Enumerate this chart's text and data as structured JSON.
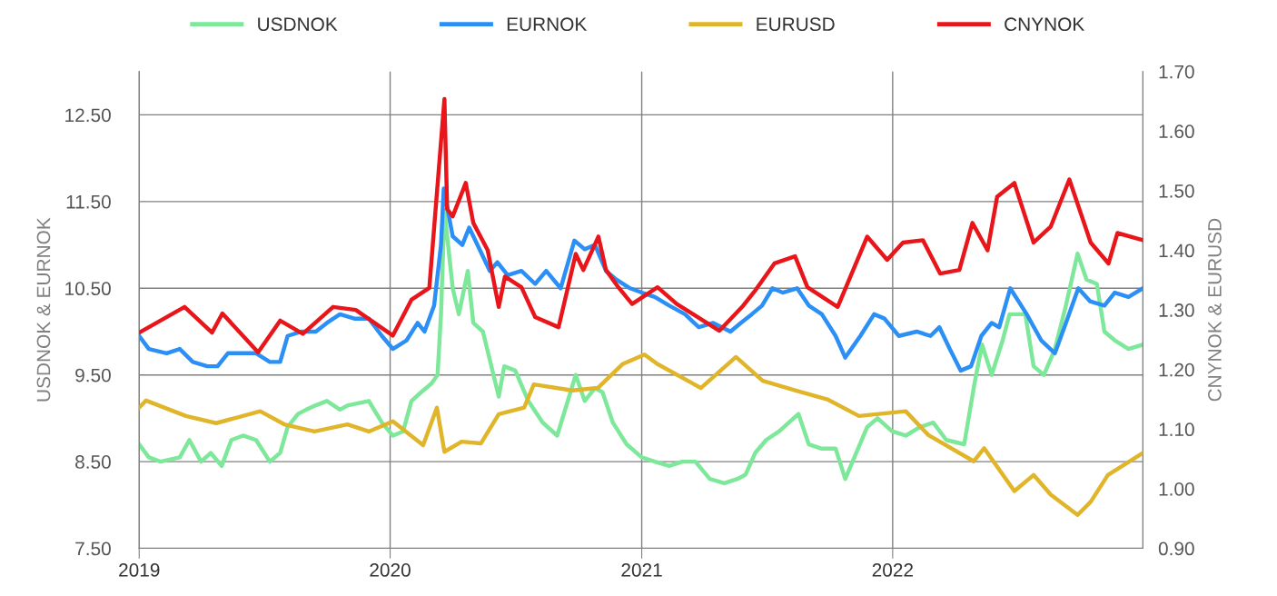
{
  "chart_data": {
    "type": "line",
    "ylabel": "USDNOK & EURNOK",
    "y2label": "CNYNOK & EURUSD",
    "xlim": [
      "2019-01-01",
      "2022-12-31"
    ],
    "xticks": [
      {
        "value": "2019-01-01",
        "label": "2019"
      },
      {
        "value": "2020-01-01",
        "label": "2020"
      },
      {
        "value": "2021-01-01",
        "label": "2021"
      },
      {
        "value": "2022-01-01",
        "label": "2022"
      }
    ],
    "ylim": [
      7.5,
      13.0
    ],
    "yticks": [
      {
        "value": 7.5,
        "label": "7.50"
      },
      {
        "value": 8.5,
        "label": "8.50"
      },
      {
        "value": 9.5,
        "label": "9.50"
      },
      {
        "value": 10.5,
        "label": "10.50"
      },
      {
        "value": 11.5,
        "label": "11.50"
      },
      {
        "value": 12.5,
        "label": "12.50"
      }
    ],
    "y2lim": [
      0.9,
      1.7
    ],
    "y2ticks": [
      {
        "value": 0.9,
        "label": "0.90"
      },
      {
        "value": 1.0,
        "label": "1.00"
      },
      {
        "value": 1.1,
        "label": "1.10"
      },
      {
        "value": 1.2,
        "label": "1.20"
      },
      {
        "value": 1.3,
        "label": "1.30"
      },
      {
        "value": 1.4,
        "label": "1.40"
      },
      {
        "value": 1.5,
        "label": "1.50"
      },
      {
        "value": 1.6,
        "label": "1.60"
      },
      {
        "value": 1.7,
        "label": "1.70"
      }
    ],
    "grid": true,
    "legend": "top",
    "marker": "none",
    "line_style": "solid",
    "series": [
      {
        "name": "USDNOK",
        "color": "#7de89a",
        "x": [
          "2019-01-01",
          "2019-01-15",
          "2019-02-01",
          "2019-03-01",
          "2019-03-15",
          "2019-04-01",
          "2019-04-15",
          "2019-05-01",
          "2019-05-15",
          "2019-06-01",
          "2019-06-20",
          "2019-07-10",
          "2019-07-25",
          "2019-08-05",
          "2019-08-20",
          "2019-09-01",
          "2019-09-15",
          "2019-10-01",
          "2019-10-20",
          "2019-11-01",
          "2019-12-01",
          "2019-12-20",
          "2020-01-05",
          "2020-01-20",
          "2020-02-01",
          "2020-02-15",
          "2020-03-01",
          "2020-03-10",
          "2020-03-15",
          "2020-03-20",
          "2020-04-01",
          "2020-04-10",
          "2020-04-23",
          "2020-05-01",
          "2020-05-15",
          "2020-06-07",
          "2020-06-15",
          "2020-07-01",
          "2020-07-20",
          "2020-08-10",
          "2020-08-31",
          "2020-09-27",
          "2020-10-10",
          "2020-10-25",
          "2020-11-05",
          "2020-11-20",
          "2020-12-10",
          "2021-01-01",
          "2021-01-20",
          "2021-02-10",
          "2021-03-01",
          "2021-03-20",
          "2021-04-10",
          "2021-05-01",
          "2021-05-20",
          "2021-06-01",
          "2021-06-15",
          "2021-07-01",
          "2021-07-20",
          "2021-08-17",
          "2021-09-01",
          "2021-09-20",
          "2021-10-10",
          "2021-10-24",
          "2021-11-25",
          "2021-12-10",
          "2021-12-31",
          "2022-01-20",
          "2022-02-10",
          "2022-03-01",
          "2022-03-20",
          "2022-04-15",
          "2022-04-30",
          "2022-05-11",
          "2022-05-25",
          "2022-06-10",
          "2022-06-20",
          "2022-07-13",
          "2022-07-25",
          "2022-08-09",
          "2022-08-25",
          "2022-09-10",
          "2022-09-27",
          "2022-10-10",
          "2022-10-25",
          "2022-11-05",
          "2022-11-20",
          "2022-12-10",
          "2022-12-31"
        ],
        "values": [
          8.7,
          8.55,
          8.5,
          8.55,
          8.75,
          8.5,
          8.6,
          8.45,
          8.75,
          8.8,
          8.75,
          8.5,
          8.6,
          8.9,
          9.05,
          9.1,
          9.15,
          9.2,
          9.1,
          9.15,
          9.2,
          8.95,
          8.8,
          8.85,
          9.2,
          9.3,
          9.4,
          9.5,
          10.2,
          11.4,
          10.5,
          10.2,
          10.7,
          10.1,
          10.0,
          9.25,
          9.6,
          9.55,
          9.2,
          8.95,
          8.8,
          9.5,
          9.2,
          9.35,
          9.3,
          8.95,
          8.7,
          8.55,
          8.5,
          8.45,
          8.5,
          8.5,
          8.3,
          8.25,
          8.3,
          8.35,
          8.6,
          8.75,
          8.85,
          9.05,
          8.7,
          8.65,
          8.65,
          8.3,
          8.9,
          9.0,
          8.85,
          8.8,
          8.9,
          8.95,
          8.75,
          8.7,
          9.4,
          9.85,
          9.5,
          9.9,
          10.2,
          10.2,
          9.6,
          9.5,
          9.8,
          10.3,
          10.9,
          10.6,
          10.55,
          10.0,
          9.9,
          9.8,
          9.85
        ]
      },
      {
        "name": "EURNOK",
        "color": "#2b8ff5",
        "x": [
          "2019-01-01",
          "2019-01-15",
          "2019-02-10",
          "2019-03-01",
          "2019-03-20",
          "2019-04-10",
          "2019-04-25",
          "2019-05-10",
          "2019-06-01",
          "2019-06-20",
          "2019-07-10",
          "2019-07-25",
          "2019-08-05",
          "2019-08-25",
          "2019-09-15",
          "2019-10-01",
          "2019-10-20",
          "2019-11-10",
          "2019-12-01",
          "2019-12-20",
          "2020-01-05",
          "2020-01-25",
          "2020-02-10",
          "2020-02-20",
          "2020-03-05",
          "2020-03-15",
          "2020-03-19",
          "2020-04-01",
          "2020-04-15",
          "2020-04-25",
          "2020-05-10",
          "2020-05-25",
          "2020-06-05",
          "2020-06-20",
          "2020-07-10",
          "2020-07-30",
          "2020-08-15",
          "2020-09-05",
          "2020-09-25",
          "2020-10-10",
          "2020-10-25",
          "2020-11-10",
          "2020-11-25",
          "2020-12-15",
          "2021-01-01",
          "2021-01-20",
          "2021-02-10",
          "2021-03-05",
          "2021-03-25",
          "2021-04-15",
          "2021-05-10",
          "2021-05-25",
          "2021-06-10",
          "2021-06-25",
          "2021-07-10",
          "2021-07-25",
          "2021-08-15",
          "2021-09-01",
          "2021-09-20",
          "2021-10-10",
          "2021-10-24",
          "2021-11-15",
          "2021-12-05",
          "2021-12-20",
          "2022-01-10",
          "2022-02-05",
          "2022-02-25",
          "2022-03-10",
          "2022-03-25",
          "2022-04-10",
          "2022-04-25",
          "2022-05-10",
          "2022-05-25",
          "2022-06-05",
          "2022-06-21",
          "2022-07-15",
          "2022-08-05",
          "2022-08-25",
          "2022-09-10",
          "2022-09-28",
          "2022-10-15",
          "2022-11-05",
          "2022-11-20",
          "2022-12-10",
          "2022-12-31"
        ],
        "values": [
          9.95,
          9.8,
          9.75,
          9.8,
          9.65,
          9.6,
          9.6,
          9.75,
          9.75,
          9.75,
          9.65,
          9.65,
          9.95,
          10.0,
          10.0,
          10.1,
          10.2,
          10.15,
          10.15,
          9.95,
          9.8,
          9.9,
          10.1,
          10.0,
          10.3,
          11.0,
          11.65,
          11.1,
          11.0,
          11.2,
          10.95,
          10.7,
          10.8,
          10.65,
          10.7,
          10.55,
          10.7,
          10.5,
          11.05,
          10.95,
          11.0,
          10.7,
          10.6,
          10.5,
          10.45,
          10.4,
          10.3,
          10.2,
          10.05,
          10.1,
          10.0,
          10.1,
          10.2,
          10.3,
          10.5,
          10.45,
          10.5,
          10.3,
          10.2,
          9.95,
          9.7,
          9.95,
          10.2,
          10.15,
          9.95,
          10.0,
          9.95,
          10.05,
          9.8,
          9.55,
          9.6,
          9.95,
          10.1,
          10.05,
          10.5,
          10.2,
          9.9,
          9.75,
          10.1,
          10.5,
          10.35,
          10.3,
          10.45,
          10.4,
          10.5
        ]
      },
      {
        "name": "EURUSD",
        "color": "#e0b52a",
        "axis": "y2",
        "x": [
          "2019-01-01",
          "2019-01-11",
          "2019-03-10",
          "2019-04-23",
          "2019-06-26",
          "2019-07-31",
          "2019-09-13",
          "2019-10-31",
          "2019-12-01",
          "2020-01-05",
          "2020-02-18",
          "2020-03-09",
          "2020-03-20",
          "2020-04-14",
          "2020-05-12",
          "2020-06-07",
          "2020-07-14",
          "2020-07-28",
          "2020-09-22",
          "2020-10-29",
          "2020-12-04",
          "2021-01-05",
          "2021-01-24",
          "2021-03-28",
          "2021-05-18",
          "2021-06-26",
          "2021-08-12",
          "2021-09-28",
          "2021-11-13",
          "2022-01-20",
          "2022-02-22",
          "2022-04-29",
          "2022-05-14",
          "2022-06-27",
          "2022-07-25",
          "2022-08-19",
          "2022-09-27",
          "2022-10-16",
          "2022-11-10",
          "2022-12-31"
        ],
        "values": [
          1.136,
          1.148,
          1.122,
          1.11,
          1.13,
          1.108,
          1.096,
          1.108,
          1.096,
          1.113,
          1.073,
          1.136,
          1.062,
          1.079,
          1.076,
          1.125,
          1.136,
          1.175,
          1.165,
          1.169,
          1.209,
          1.225,
          1.209,
          1.169,
          1.221,
          1.181,
          1.165,
          1.15,
          1.122,
          1.13,
          1.09,
          1.046,
          1.068,
          0.996,
          1.023,
          0.99,
          0.956,
          0.978,
          1.023,
          1.06
        ]
      },
      {
        "name": "CNYNOK",
        "color": "#e8161b",
        "axis": "y2",
        "x": [
          "2019-01-01",
          "2019-03-08",
          "2019-04-17",
          "2019-05-02",
          "2019-06-23",
          "2019-07-25",
          "2019-08-27",
          "2019-10-10",
          "2019-11-12",
          "2020-01-05",
          "2020-02-01",
          "2020-02-27",
          "2020-03-20",
          "2020-03-24",
          "2020-04-01",
          "2020-04-20",
          "2020-05-01",
          "2020-05-22",
          "2020-06-07",
          "2020-06-16",
          "2020-07-10",
          "2020-07-30",
          "2020-09-02",
          "2020-09-27",
          "2020-10-08",
          "2020-10-17",
          "2020-10-30",
          "2020-11-10",
          "2020-11-28",
          "2020-12-18",
          "2021-01-24",
          "2021-02-21",
          "2021-04-24",
          "2021-05-27",
          "2021-06-16",
          "2021-07-13",
          "2021-08-12",
          "2021-08-30",
          "2021-10-13",
          "2021-11-25",
          "2021-12-24",
          "2022-01-16",
          "2022-02-14",
          "2022-03-11",
          "2022-04-08",
          "2022-04-27",
          "2022-05-19",
          "2022-06-02",
          "2022-06-27",
          "2022-07-25",
          "2022-08-19",
          "2022-09-15",
          "2022-10-16",
          "2022-11-11",
          "2022-11-24",
          "2022-12-31"
        ],
        "values": [
          1.262,
          1.305,
          1.262,
          1.294,
          1.229,
          1.282,
          1.26,
          1.305,
          1.3,
          1.257,
          1.317,
          1.337,
          1.654,
          1.469,
          1.457,
          1.513,
          1.446,
          1.4,
          1.305,
          1.356,
          1.338,
          1.288,
          1.271,
          1.394,
          1.367,
          1.39,
          1.423,
          1.367,
          1.338,
          1.31,
          1.338,
          1.31,
          1.265,
          1.305,
          1.334,
          1.378,
          1.39,
          1.338,
          1.305,
          1.423,
          1.384,
          1.413,
          1.417,
          1.361,
          1.367,
          1.446,
          1.4,
          1.49,
          1.513,
          1.413,
          1.44,
          1.519,
          1.413,
          1.378,
          1.429,
          1.417
        ]
      }
    ]
  }
}
